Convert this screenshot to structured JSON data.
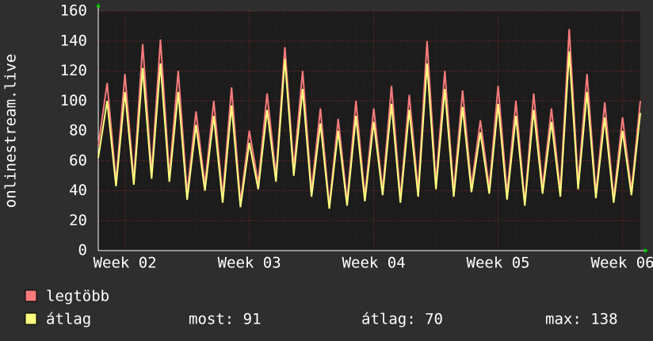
{
  "chart_data": {
    "type": "line",
    "y_label": "onlinestream.live",
    "categories": [
      null,
      null,
      null,
      "Week 02",
      null,
      null,
      null,
      null,
      null,
      null,
      null,
      null,
      null,
      null,
      null,
      null,
      null,
      "Week 03",
      null,
      null,
      null,
      null,
      null,
      null,
      null,
      null,
      null,
      null,
      null,
      null,
      null,
      "Week 04",
      null,
      null,
      null,
      null,
      null,
      null,
      null,
      null,
      null,
      null,
      null,
      null,
      null,
      "Week 05",
      null,
      null,
      null,
      null,
      null,
      null,
      null,
      null,
      null,
      null,
      null,
      null,
      null,
      "Week 06",
      null,
      null
    ],
    "series": [
      {
        "name": "legtöbb",
        "color": "#f77b7b",
        "values": [
          70,
          112,
          46,
          118,
          47,
          138,
          52,
          141,
          50,
          120,
          38,
          93,
          44,
          100,
          36,
          109,
          32,
          80,
          45,
          105,
          50,
          136,
          55,
          120,
          40,
          95,
          30,
          88,
          33,
          100,
          36,
          95,
          40,
          110,
          35,
          104,
          40,
          140,
          45,
          120,
          40,
          107,
          43,
          87,
          42,
          110,
          38,
          100,
          32,
          105,
          42,
          95,
          40,
          148,
          45,
          118,
          38,
          99,
          35,
          89,
          40,
          100
        ]
      },
      {
        "name": "átlag",
        "color": "#ffff80",
        "values": [
          62,
          100,
          43,
          106,
          44,
          122,
          48,
          125,
          46,
          106,
          34,
          84,
          40,
          90,
          32,
          97,
          29,
          72,
          41,
          94,
          46,
          128,
          50,
          108,
          36,
          85,
          28,
          80,
          30,
          90,
          33,
          86,
          37,
          98,
          32,
          94,
          36,
          125,
          41,
          108,
          36,
          96,
          39,
          79,
          38,
          98,
          34,
          90,
          30,
          94,
          38,
          86,
          36,
          133,
          41,
          106,
          35,
          89,
          32,
          80,
          37,
          92
        ]
      }
    ],
    "stats": [
      "most: 91",
      "átlag: 70",
      "max: 138"
    ],
    "ylim": [
      0,
      160
    ],
    "yticks": [
      0,
      20,
      40,
      60,
      80,
      100,
      120,
      140,
      160
    ],
    "grid": true
  }
}
